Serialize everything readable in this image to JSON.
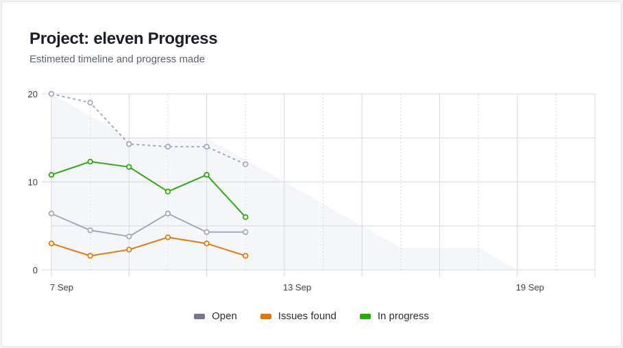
{
  "header": {
    "title": "Project: eleven Progress",
    "subtitle": "Estimeted timeline and progress made"
  },
  "chart_data": {
    "type": "line",
    "title": "Project: eleven Progress",
    "subtitle": "Estimeted timeline and progress made",
    "x_unit": "day of September",
    "xlim": [
      7,
      21
    ],
    "ylim": [
      0,
      20
    ],
    "y_ticks": [
      0,
      10,
      20
    ],
    "x_tick_labels": [
      {
        "day": 7,
        "label": "7 Sep"
      },
      {
        "day": 13,
        "label": "13 Sep"
      },
      {
        "day": 19,
        "label": "19 Sep"
      }
    ],
    "grid": true,
    "legend_position": "bottom",
    "x": [
      7,
      8,
      9,
      10,
      11,
      12
    ],
    "estimate_area": {
      "x": [
        7,
        9,
        11,
        16,
        18,
        19
      ],
      "y": [
        20,
        15,
        15,
        2.5,
        2.5,
        0
      ],
      "color": "#f4f6fa"
    },
    "remaining_dotted": {
      "values": [
        20,
        19,
        14.3,
        14,
        14,
        12
      ],
      "color": "#a6a9b9"
    },
    "series": [
      {
        "name": "Open",
        "values": [
          6.4,
          4.5,
          3.8,
          6.4,
          4.3,
          4.3
        ],
        "color": "#a6a9b9",
        "legend_color": "#737791"
      },
      {
        "name": "Issues found",
        "values": [
          3.0,
          1.6,
          2.3,
          3.7,
          3.0,
          1.6
        ],
        "color": "#e0780f",
        "legend_color": "#e0780f"
      },
      {
        "name": "In progress",
        "values": [
          10.8,
          12.3,
          11.7,
          8.9,
          10.8,
          6.0
        ],
        "color": "#2ea80f",
        "legend_color": "#2ea80f"
      }
    ]
  }
}
